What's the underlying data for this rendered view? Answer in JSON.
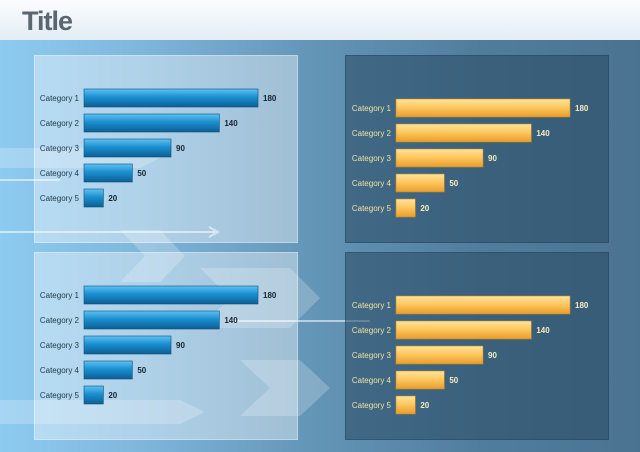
{
  "title": "Title",
  "colors": {
    "blue_bar": "#1a8fd0",
    "orange_bar": "#fdc45a"
  },
  "chart_data": [
    {
      "type": "bar",
      "orientation": "horizontal",
      "theme": "blue",
      "categories": [
        "Category 1",
        "Category 2",
        "Category 3",
        "Category 4",
        "Category 5"
      ],
      "values": [
        180,
        140,
        90,
        50,
        20
      ],
      "value_labels": [
        "180",
        "140",
        "90",
        "50",
        "20"
      ]
    },
    {
      "type": "bar",
      "orientation": "horizontal",
      "theme": "orange",
      "categories": [
        "Category 1",
        "Category 2",
        "Category 3",
        "Category 4",
        "Category 5"
      ],
      "values": [
        180,
        140,
        90,
        50,
        20
      ],
      "value_labels": [
        "180",
        "140",
        "90",
        "50",
        "20"
      ]
    },
    {
      "type": "bar",
      "orientation": "horizontal",
      "theme": "blue",
      "categories": [
        "Category 1",
        "Category 2",
        "Category 3",
        "Category 4",
        "Category 5"
      ],
      "values": [
        180,
        140,
        90,
        50,
        20
      ],
      "value_labels": [
        "180",
        "140",
        "90",
        "50",
        "20"
      ]
    },
    {
      "type": "bar",
      "orientation": "horizontal",
      "theme": "orange",
      "categories": [
        "Category 1",
        "Category 2",
        "Category 3",
        "Category 4",
        "Category 5"
      ],
      "values": [
        180,
        140,
        90,
        50,
        20
      ],
      "value_labels": [
        "180",
        "140",
        "90",
        "50",
        "20"
      ]
    }
  ]
}
